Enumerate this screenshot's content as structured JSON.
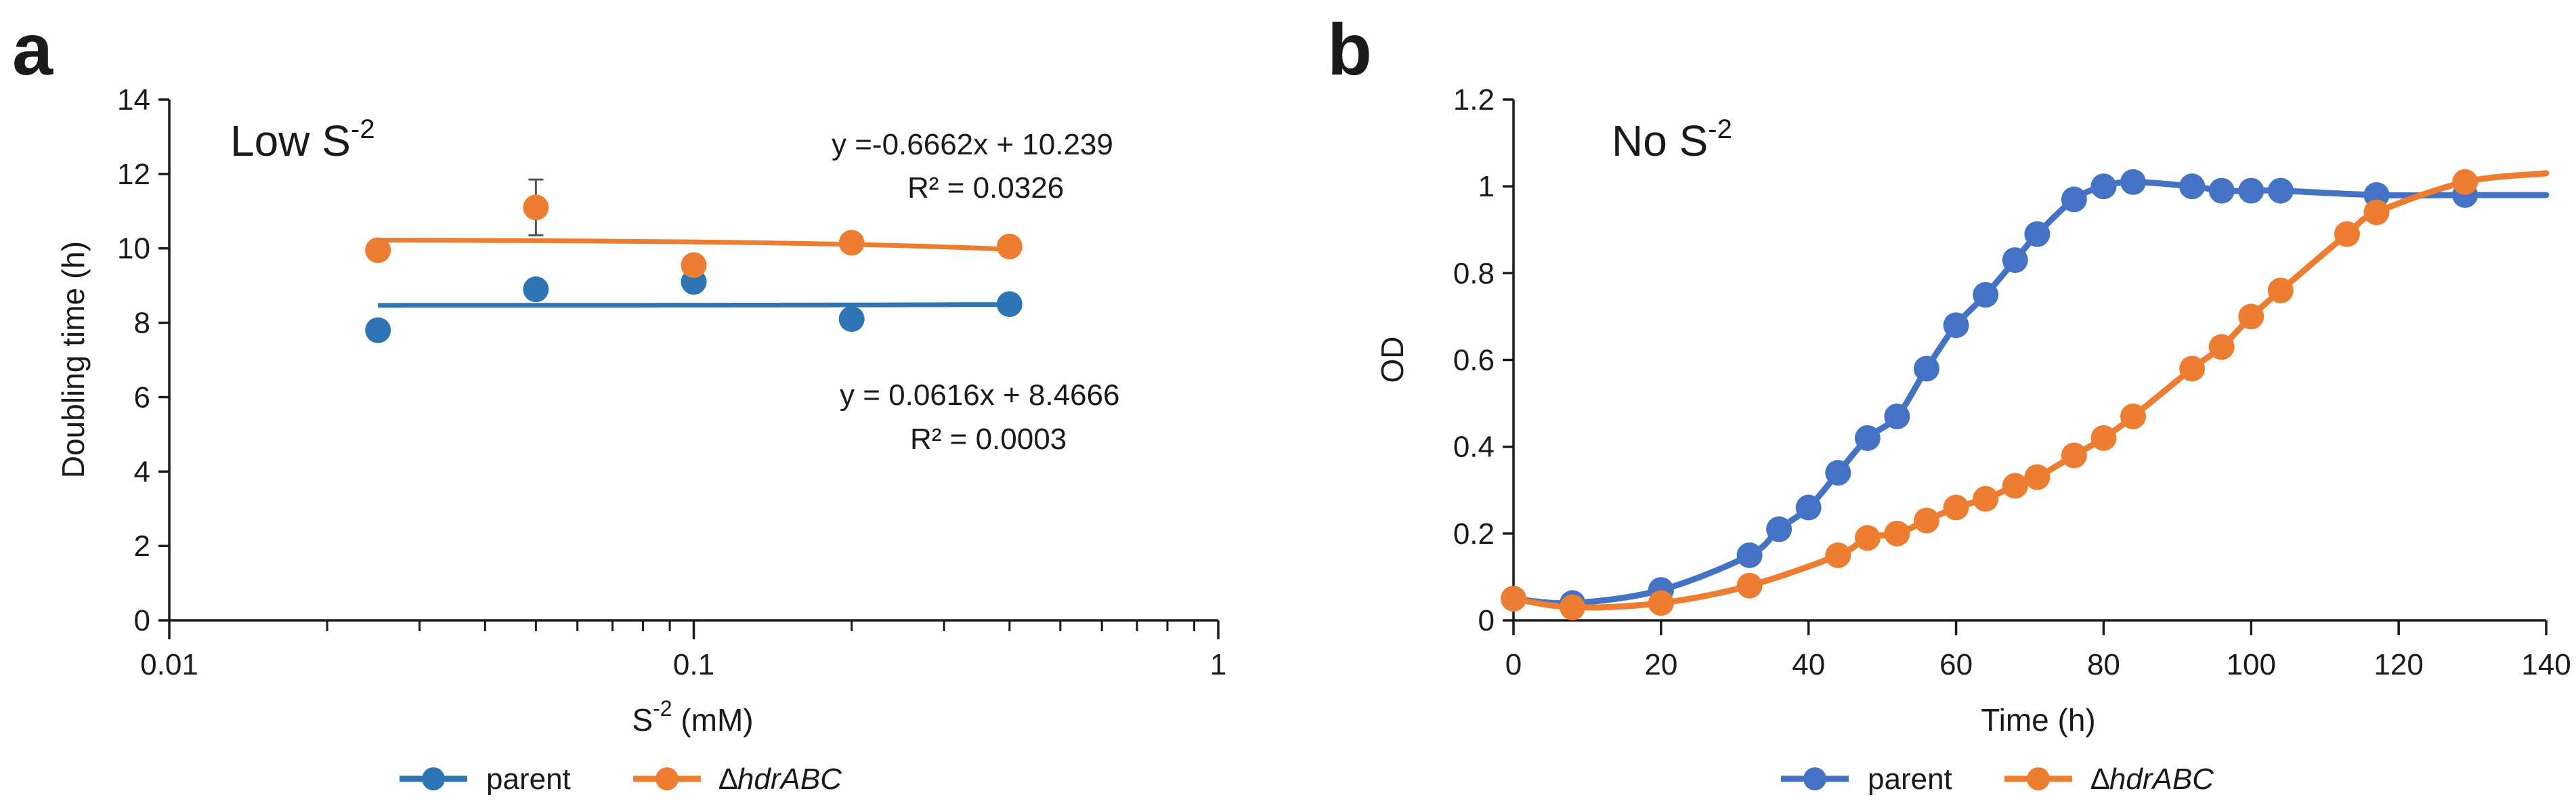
{
  "chart_data": [
    {
      "panel": "a",
      "type": "scatter",
      "title": "Low S-2",
      "title_parts": {
        "base": "Low S",
        "sup": "-2"
      },
      "xlabel": "S-2 (mM)",
      "xlabel_parts": {
        "base": "S",
        "sup": "-2",
        "rest": " (mM)"
      },
      "ylabel": "Doubling time (h)",
      "xscale": "log",
      "xlim": [
        0.01,
        1
      ],
      "ylim": [
        0,
        14
      ],
      "x_ticks": [
        0.01,
        0.1,
        1
      ],
      "x_tick_labels": [
        "0.01",
        "0.1",
        "1"
      ],
      "y_ticks": [
        0,
        2,
        4,
        6,
        8,
        10,
        12,
        14
      ],
      "y_tick_labels": [
        "0",
        "2",
        "4",
        "6",
        "8",
        "10",
        "12",
        "14"
      ],
      "series": [
        {
          "name": "parent",
          "color": "#2e75b6",
          "x": [
            0.025,
            0.05,
            0.1,
            0.2,
            0.4
          ],
          "y": [
            7.8,
            8.9,
            9.1,
            8.1,
            8.5
          ],
          "trendline": {
            "slope": 0.0616,
            "intercept": 8.4666,
            "x_range": [
              0.025,
              0.4
            ]
          },
          "equation": "y = 0.0616x + 8.4666",
          "r2": "R² = 0.0003"
        },
        {
          "name": "ΔhdrABC",
          "color": "#ed7d31",
          "x": [
            0.025,
            0.05,
            0.1,
            0.2,
            0.4
          ],
          "y": [
            9.95,
            11.1,
            9.55,
            10.15,
            10.05
          ],
          "error": [
            0,
            0.75,
            0,
            0,
            0
          ],
          "trendline": {
            "slope": -0.6662,
            "intercept": 10.239,
            "x_range": [
              0.025,
              0.4
            ]
          },
          "equation": "y =-0.6662x + 10.239",
          "r2": "R² = 0.0326"
        }
      ],
      "legend": [
        {
          "label": "parent",
          "prefix": "",
          "italic": ""
        },
        {
          "label": "ΔhdrABC",
          "prefix": "∆",
          "italic": "hdrABC"
        }
      ]
    },
    {
      "panel": "b",
      "type": "line",
      "title": "No S-2",
      "title_parts": {
        "base": "No S",
        "sup": "-2"
      },
      "xlabel": "Time (h)",
      "ylabel": "OD",
      "xlim": [
        0,
        140
      ],
      "ylim": [
        0,
        1.2
      ],
      "x_ticks": [
        0,
        20,
        40,
        60,
        80,
        100,
        120,
        140
      ],
      "x_tick_labels": [
        "0",
        "20",
        "40",
        "60",
        "80",
        "100",
        "120",
        "140"
      ],
      "y_ticks": [
        0,
        0.2,
        0.4,
        0.6,
        0.8,
        1,
        1.2
      ],
      "y_tick_labels": [
        "0",
        "0.2",
        "0.4",
        "0.6",
        "0.8",
        "1",
        "1.2"
      ],
      "series": [
        {
          "name": "parent",
          "color": "#4472c4",
          "x": [
            0,
            8,
            20,
            32,
            36,
            40,
            44,
            48,
            52,
            56,
            60,
            64,
            68,
            71,
            76,
            80,
            84,
            92,
            96,
            100,
            104,
            117,
            129
          ],
          "y": [
            0.05,
            0.04,
            0.07,
            0.15,
            0.21,
            0.26,
            0.34,
            0.42,
            0.47,
            0.58,
            0.68,
            0.75,
            0.83,
            0.89,
            0.97,
            1.0,
            1.01,
            1.0,
            0.99,
            0.99,
            0.99,
            0.98,
            0.98
          ],
          "curve_end": [
            140,
            0.98
          ]
        },
        {
          "name": "ΔhdrABC",
          "color": "#ed7d31",
          "x": [
            0,
            8,
            20,
            32,
            44,
            48,
            52,
            56,
            60,
            64,
            68,
            71,
            76,
            80,
            84,
            92,
            96,
            100,
            104,
            113,
            117,
            129
          ],
          "y": [
            0.05,
            0.03,
            0.04,
            0.08,
            0.15,
            0.19,
            0.2,
            0.23,
            0.26,
            0.28,
            0.31,
            0.33,
            0.38,
            0.42,
            0.47,
            0.58,
            0.63,
            0.7,
            0.76,
            0.89,
            0.94,
            1.01
          ],
          "curve_end": [
            140,
            1.03
          ]
        }
      ],
      "legend": [
        {
          "label": "parent",
          "prefix": "",
          "italic": ""
        },
        {
          "label": "ΔhdrABC",
          "prefix": "∆",
          "italic": "hdrABC"
        }
      ]
    }
  ]
}
